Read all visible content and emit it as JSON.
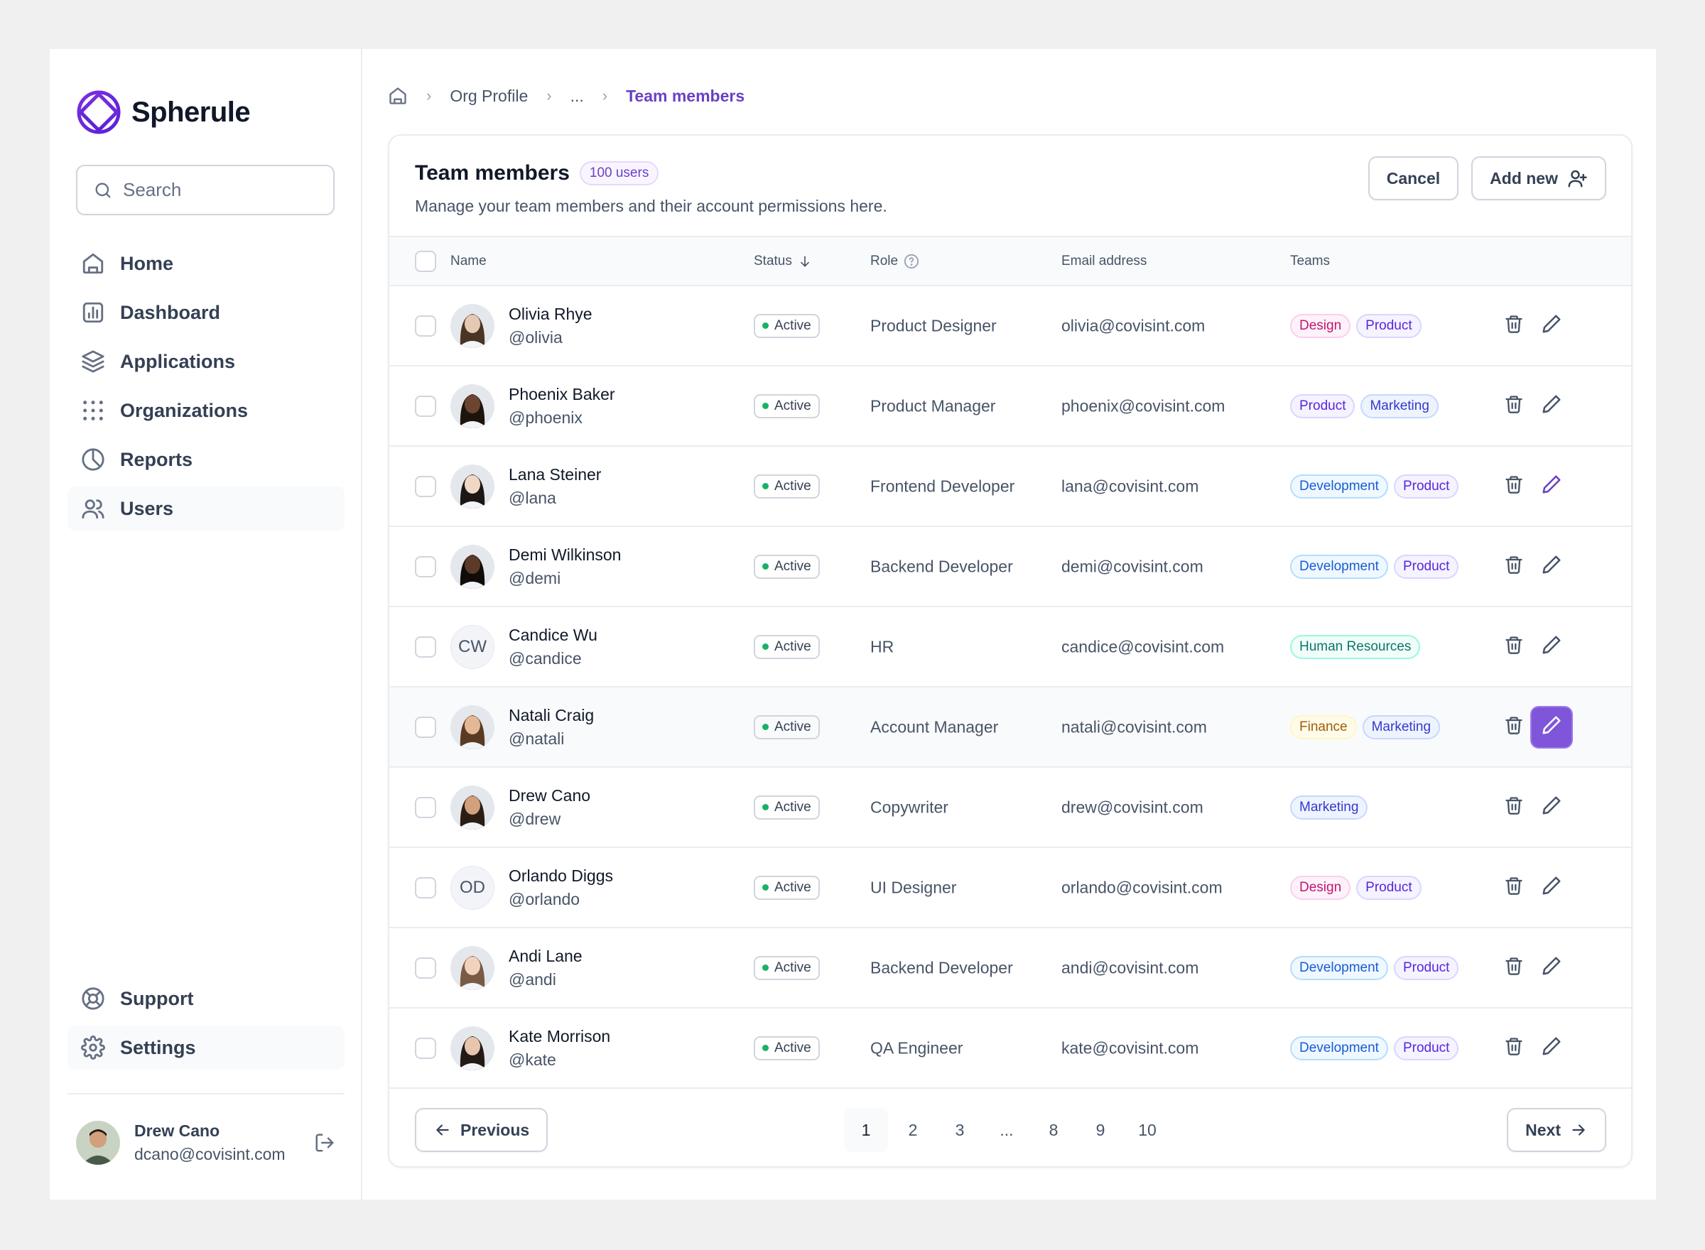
{
  "app": {
    "name": "Spherule"
  },
  "sidebar": {
    "search_placeholder": "Search",
    "items": [
      {
        "label": "Home",
        "icon": "home-icon"
      },
      {
        "label": "Dashboard",
        "icon": "bar-chart-icon"
      },
      {
        "label": "Applications",
        "icon": "layers-icon"
      },
      {
        "label": "Organizations",
        "icon": "grid-dots-icon"
      },
      {
        "label": "Reports",
        "icon": "pie-chart-icon"
      },
      {
        "label": "Users",
        "icon": "users-icon",
        "active": true
      }
    ],
    "bottom_items": [
      {
        "label": "Support",
        "icon": "life-buoy-icon"
      },
      {
        "label": "Settings",
        "icon": "gear-icon",
        "active": true
      }
    ],
    "user": {
      "name": "Drew Cano",
      "email": "dcano@covisint.com"
    }
  },
  "breadcrumb": {
    "home": "home-icon",
    "items": [
      "Org Profile",
      "...",
      "Team members"
    ]
  },
  "header": {
    "title": "Team members",
    "badge": "100 users",
    "subtitle": "Manage your team members and their account permissions here.",
    "cancel": "Cancel",
    "add_new": "Add new"
  },
  "table": {
    "columns": {
      "name": "Name",
      "status": "Status",
      "role": "Role",
      "email": "Email address",
      "teams": "Teams"
    },
    "rows": [
      {
        "name": "Olivia Rhye",
        "handle": "@olivia",
        "status": "Active",
        "role": "Product Designer",
        "email": "olivia@covisint.com",
        "teams": [
          "Design",
          "Product"
        ],
        "avatar": "photo",
        "skin": "#e6c9b3",
        "hair": "#4a3425"
      },
      {
        "name": "Phoenix Baker",
        "handle": "@phoenix",
        "status": "Active",
        "role": "Product Manager",
        "email": "phoenix@covisint.com",
        "teams": [
          "Product",
          "Marketing"
        ],
        "avatar": "photo",
        "skin": "#6b4530",
        "hair": "#1e140e"
      },
      {
        "name": "Lana Steiner",
        "handle": "@lana",
        "status": "Active",
        "role": "Frontend Developer",
        "email": "lana@covisint.com",
        "teams": [
          "Development",
          "Product"
        ],
        "avatar": "photo",
        "skin": "#f0d7c6",
        "hair": "#1c1714"
      },
      {
        "name": "Demi Wilkinson",
        "handle": "@demi",
        "status": "Active",
        "role": "Backend Developer",
        "email": "demi@covisint.com",
        "teams": [
          "Development",
          "Product"
        ],
        "avatar": "photo",
        "skin": "#5b3a28",
        "hair": "#120c09"
      },
      {
        "name": "Candice Wu",
        "handle": "@candice",
        "status": "Active",
        "role": "HR",
        "email": "candice@covisint.com",
        "teams": [
          "Human Resources"
        ],
        "avatar": "initials",
        "initials": "CW"
      },
      {
        "name": "Natali Craig",
        "handle": "@natali",
        "status": "Active",
        "role": "Account Manager",
        "email": "natali@covisint.com",
        "teams": [
          "Finance",
          "Marketing"
        ],
        "avatar": "photo",
        "skin": "#e3b896",
        "hair": "#5a3a22",
        "highlight": true
      },
      {
        "name": "Drew Cano",
        "handle": "@drew",
        "status": "Active",
        "role": "Copywriter",
        "email": "drew@covisint.com",
        "teams": [
          "Marketing"
        ],
        "avatar": "photo",
        "skin": "#d2a07c",
        "hair": "#2a1d14"
      },
      {
        "name": "Orlando Diggs",
        "handle": "@orlando",
        "status": "Active",
        "role": "UI Designer",
        "email": "orlando@covisint.com",
        "teams": [
          "Design",
          "Product"
        ],
        "avatar": "initials",
        "initials": "OD"
      },
      {
        "name": "Andi Lane",
        "handle": "@andi",
        "status": "Active",
        "role": "Backend Developer",
        "email": "andi@covisint.com",
        "teams": [
          "Development",
          "Product"
        ],
        "avatar": "photo",
        "skin": "#f1d2bd",
        "hair": "#7a5a44"
      },
      {
        "name": "Kate Morrison",
        "handle": "@kate",
        "status": "Active",
        "role": "QA Engineer",
        "email": "kate@covisint.com",
        "teams": [
          "Development",
          "Product"
        ],
        "avatar": "photo",
        "skin": "#e8c5ae",
        "hair": "#231a15"
      }
    ]
  },
  "team_colors": {
    "Design": {
      "bg": "#fdf2fa",
      "border": "#fcceee",
      "text": "#c11574"
    },
    "Product": {
      "bg": "#f4f3ff",
      "border": "#d9d6fe",
      "text": "#5925dc"
    },
    "Marketing": {
      "bg": "#eef4ff",
      "border": "#c7d7fe",
      "text": "#3538cd"
    },
    "Development": {
      "bg": "#eff8ff",
      "border": "#b2ddff",
      "text": "#175cd3"
    },
    "Human Resources": {
      "bg": "#f0fdf9",
      "border": "#99f6e0",
      "text": "#107569"
    },
    "Finance": {
      "bg": "#fefbe8",
      "border": "#fef7c3",
      "text": "#a15c07"
    }
  },
  "pagination": {
    "previous": "Previous",
    "next": "Next",
    "pages": [
      "1",
      "2",
      "3",
      "...",
      "8",
      "9",
      "10"
    ],
    "current": "1"
  },
  "colors": {
    "accent": "#7f56d9",
    "accent_text": "#6941c6",
    "status_dot": "#17b26a"
  }
}
